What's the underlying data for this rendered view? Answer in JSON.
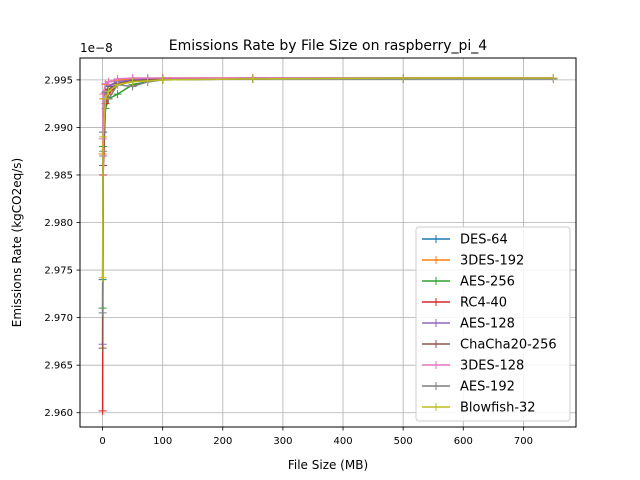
{
  "chart_data": {
    "type": "line",
    "title": "Emissions Rate by File Size on raspberry_pi_4",
    "xlabel": "File Size (MB)",
    "ylabel": "Emissions Rate (kgCO2eq/s)",
    "y_offset_label": "1e−8",
    "y_scale_factor": 1e-08,
    "xlim": [
      -37.5,
      787.5
    ],
    "ylim": [
      2.9585,
      2.9973
    ],
    "xticks": [
      0,
      100,
      200,
      300,
      400,
      500,
      600,
      700
    ],
    "yticks": [
      2.96,
      2.965,
      2.97,
      2.975,
      2.98,
      2.985,
      2.99,
      2.995
    ],
    "ytick_labels": [
      "2.960",
      "2.965",
      "2.970",
      "2.975",
      "2.980",
      "2.985",
      "2.990",
      "2.995"
    ],
    "grid": true,
    "legend_position": "lower-right",
    "x": [
      0.1,
      1,
      5,
      10,
      25,
      50,
      75,
      100,
      250,
      500,
      750
    ],
    "series": [
      {
        "name": "DES-64",
        "color": "#1f77b4",
        "values": [
          2.974,
          2.9895,
          2.9937,
          2.9943,
          2.9948,
          2.995,
          2.9951,
          2.9951,
          2.9952,
          2.9952,
          2.9952
        ]
      },
      {
        "name": "3DES-192",
        "color": "#ff7f0e",
        "values": [
          2.9872,
          2.993,
          2.9945,
          2.9948,
          2.995,
          2.9951,
          2.9951,
          2.9952,
          2.9952,
          2.9952,
          2.9952
        ]
      },
      {
        "name": "AES-256",
        "color": "#2ca02c",
        "values": [
          2.971,
          2.988,
          2.992,
          2.993,
          2.9935,
          2.9945,
          2.9948,
          2.995,
          2.9951,
          2.9951,
          2.9952
        ]
      },
      {
        "name": "RC4-40",
        "color": "#d62728",
        "values": [
          2.9602,
          2.985,
          2.9925,
          2.9935,
          2.9945,
          2.9948,
          2.995,
          2.9951,
          2.9951,
          2.9952,
          2.9952
        ]
      },
      {
        "name": "AES-128",
        "color": "#9467bd",
        "values": [
          2.9672,
          2.987,
          2.9936,
          2.9944,
          2.9948,
          2.995,
          2.9951,
          2.9951,
          2.9952,
          2.9952,
          2.9952
        ]
      },
      {
        "name": "ChaCha20-256",
        "color": "#8c564b",
        "values": [
          2.9668,
          2.986,
          2.993,
          2.994,
          2.9946,
          2.9949,
          2.995,
          2.9951,
          2.9951,
          2.9952,
          2.9952
        ]
      },
      {
        "name": "3DES-128",
        "color": "#e377c2",
        "values": [
          2.9888,
          2.9935,
          2.9946,
          2.9948,
          2.9951,
          2.9952,
          2.9952,
          2.9952,
          2.9952,
          2.9952,
          2.9952
        ]
      },
      {
        "name": "AES-192",
        "color": "#7f7f7f",
        "values": [
          2.9705,
          2.9875,
          2.9937,
          2.993,
          2.9945,
          2.9943,
          2.9948,
          2.995,
          2.9951,
          2.9951,
          2.9951
        ]
      },
      {
        "name": "Blowfish-32",
        "color": "#bcbd22",
        "values": [
          2.9742,
          2.989,
          2.993,
          2.9938,
          2.9945,
          2.9948,
          2.9949,
          2.995,
          2.9951,
          2.9952,
          2.9952
        ]
      }
    ]
  }
}
